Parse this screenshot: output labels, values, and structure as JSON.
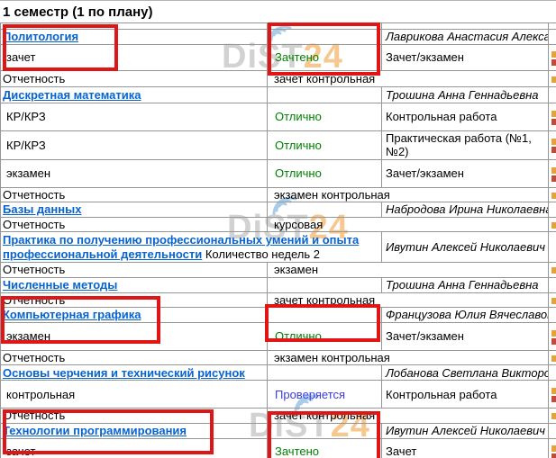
{
  "header": {
    "title": "1 семестр (1 по плану)"
  },
  "labels": {
    "report": "Отчетность"
  },
  "watermark": {
    "gray": "DiST",
    "orange": "24"
  },
  "colors": {
    "link_blue": "#0663cf",
    "grade_green": "#008000",
    "status_blue": "#3a3ae0",
    "highlight_red": "#e01616",
    "watermark_gray": "#d2d2d2",
    "watermark_orange": "#f6c88f"
  },
  "table": {
    "rows": [
      {
        "k": "thin"
      },
      {
        "k": "subject",
        "name": "Политология",
        "teacher": "Лаврикова Анастасия Алекса"
      },
      {
        "k": "value",
        "label": "зачет",
        "grade": "Зачтено",
        "gc": "green",
        "work": "Зачет/экзамен",
        "h": 29
      },
      {
        "k": "report",
        "value": "зачет контрольная",
        "h": 18
      },
      {
        "k": "subject",
        "name": "Дискретная математика",
        "teacher": "Трошина Анна Геннадьевна",
        "h": 18
      },
      {
        "k": "value",
        "label": "КР/КРЗ",
        "grade": "Отлично",
        "gc": "green",
        "work": "Контрольная работа"
      },
      {
        "k": "value",
        "label": "КР/КРЗ",
        "grade": "Отлично",
        "gc": "green",
        "work": "Практическая работа (№1, №2)"
      },
      {
        "k": "value",
        "label": "экзамен",
        "grade": "Отлично",
        "gc": "green",
        "work": "Зачет/экзамен"
      },
      {
        "k": "report",
        "value": "экзамен контрольная",
        "h": 16
      },
      {
        "k": "subject",
        "name": "Базы данных",
        "teacher": "Набродова Ирина Николаевна"
      },
      {
        "k": "report",
        "value": "курсовая",
        "h": 16
      },
      {
        "k": "subject",
        "name": "Практика по получению профессиональных умений и опыта профессиональной деятельности",
        "suffix": " Количество недель 2",
        "wide": true,
        "teacher": "Ивутин Алексей Николаевич",
        "h": 34
      },
      {
        "k": "report",
        "value": "экзамен"
      },
      {
        "k": "subject",
        "name": "Численные методы",
        "teacher": "Трошина Анна Геннадьевна"
      },
      {
        "k": "report",
        "value": "зачет контрольная"
      },
      {
        "k": "subject",
        "name": "Компьютерная графика",
        "teacher": "Французова Юлия Вячеславов"
      },
      {
        "k": "value",
        "label": "экзамен",
        "grade": "Отлично",
        "gc": "green",
        "work": "Зачет/экзамен"
      },
      {
        "k": "report",
        "value": "экзамен контрольная"
      },
      {
        "k": "subject",
        "name": "Основы черчения и технический рисунок",
        "teacher": "Лобанова Светлана Викторо"
      },
      {
        "k": "value",
        "label": "контрольная",
        "grade": "Проверяется",
        "gc": "blue",
        "work": "Контрольная работа"
      },
      {
        "k": "report",
        "value": "зачет контрольная"
      },
      {
        "k": "subject",
        "name": "Технологии программирования",
        "teacher": "Ивутин Алексей Николаевич"
      },
      {
        "k": "value",
        "label": "зачет",
        "grade": "Зачтено",
        "gc": "green",
        "work": "Зачет",
        "h": 30
      }
    ]
  }
}
